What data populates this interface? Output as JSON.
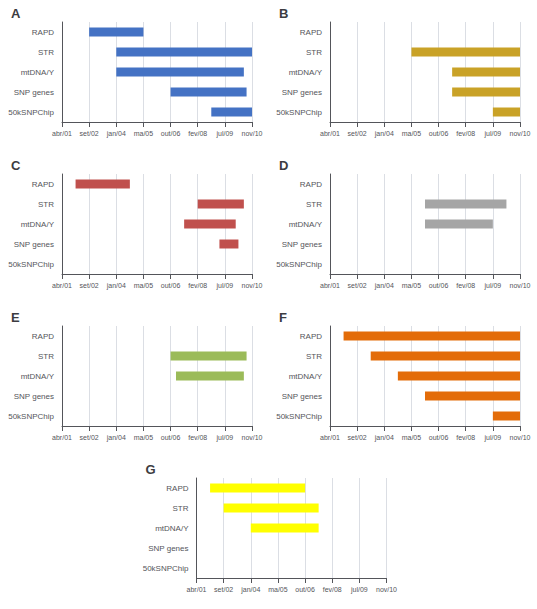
{
  "chart_data": [
    {
      "type": "bar",
      "orientation": "horizontal",
      "title": "A",
      "categories": [
        "RAPD",
        "STR",
        "mtDNA/Y",
        "SNP genes",
        "50kSNPChip"
      ],
      "values": [
        [
          1.0,
          3.0
        ],
        [
          2.0,
          7.0
        ],
        [
          2.0,
          6.7
        ],
        [
          4.0,
          6.8
        ],
        [
          5.5,
          7.0
        ]
      ],
      "color": "#4472C4",
      "xlim": [
        0,
        7
      ],
      "xticks": [
        {
          "value": 0,
          "label": "abr/01"
        },
        {
          "value": 1,
          "label": "set/02"
        },
        {
          "value": 2,
          "label": "jan/04"
        },
        {
          "value": 3,
          "label": "ma/05"
        },
        {
          "value": 4,
          "label": "out/06"
        },
        {
          "value": 5,
          "label": "fev/08"
        },
        {
          "value": 6,
          "label": "jul/09"
        },
        {
          "value": 7,
          "label": "nov/10"
        }
      ],
      "grid": true
    },
    {
      "type": "bar",
      "orientation": "horizontal",
      "title": "B",
      "categories": [
        "RAPD",
        "STR",
        "mtDNA/Y",
        "SNP genes",
        "50kSNPChip"
      ],
      "values": [
        [
          0,
          0
        ],
        [
          3.0,
          7.0
        ],
        [
          4.5,
          7.0
        ],
        [
          4.5,
          7.0
        ],
        [
          6.0,
          7.0
        ]
      ],
      "color": "#C9A227",
      "xlim": [
        0,
        7
      ],
      "xticks": [
        {
          "value": 0,
          "label": "abr/01"
        },
        {
          "value": 1,
          "label": "set/02"
        },
        {
          "value": 2,
          "label": "jan/04"
        },
        {
          "value": 3,
          "label": "ma/05"
        },
        {
          "value": 4,
          "label": "out/06"
        },
        {
          "value": 5,
          "label": "fev/08"
        },
        {
          "value": 6,
          "label": "jul/09"
        },
        {
          "value": 7,
          "label": "nov/10"
        }
      ],
      "grid": true
    },
    {
      "type": "bar",
      "orientation": "horizontal",
      "title": "C",
      "categories": [
        "RAPD",
        "STR",
        "mtDNA/Y",
        "SNP genes",
        "50kSNPChip"
      ],
      "values": [
        [
          0.5,
          2.5
        ],
        [
          5.0,
          6.7
        ],
        [
          4.5,
          6.4
        ],
        [
          5.8,
          6.5
        ],
        [
          0,
          0
        ]
      ],
      "color": "#C0504D",
      "xlim": [
        0,
        7
      ],
      "xticks": [
        {
          "value": 0,
          "label": "abr/01"
        },
        {
          "value": 1,
          "label": "set/02"
        },
        {
          "value": 2,
          "label": "jan/04"
        },
        {
          "value": 3,
          "label": "ma/05"
        },
        {
          "value": 4,
          "label": "out/06"
        },
        {
          "value": 5,
          "label": "fev/08"
        },
        {
          "value": 6,
          "label": "jul/09"
        },
        {
          "value": 7,
          "label": "nov/10"
        }
      ],
      "grid": true
    },
    {
      "type": "bar",
      "orientation": "horizontal",
      "title": "D",
      "categories": [
        "RAPD",
        "STR",
        "mtDNA/Y",
        "SNP genes",
        "50kSNPChip"
      ],
      "values": [
        [
          0,
          0
        ],
        [
          3.5,
          6.5
        ],
        [
          3.5,
          6.0
        ],
        [
          0,
          0
        ],
        [
          0,
          0
        ]
      ],
      "color": "#A5A5A5",
      "xlim": [
        0,
        7
      ],
      "xticks": [
        {
          "value": 0,
          "label": "abr/01"
        },
        {
          "value": 1,
          "label": "set/02"
        },
        {
          "value": 2,
          "label": "jan/04"
        },
        {
          "value": 3,
          "label": "ma/05"
        },
        {
          "value": 4,
          "label": "out/06"
        },
        {
          "value": 5,
          "label": "fev/08"
        },
        {
          "value": 6,
          "label": "jul/09"
        },
        {
          "value": 7,
          "label": "nov/10"
        }
      ],
      "grid": true
    },
    {
      "type": "bar",
      "orientation": "horizontal",
      "title": "E",
      "categories": [
        "RAPD",
        "STR",
        "mtDNA/Y",
        "SNP genes",
        "50kSNPChip"
      ],
      "values": [
        [
          0,
          0
        ],
        [
          4.0,
          6.8
        ],
        [
          4.2,
          6.7
        ],
        [
          0,
          0
        ],
        [
          0,
          0
        ]
      ],
      "color": "#9BBB59",
      "xlim": [
        0,
        7
      ],
      "xticks": [
        {
          "value": 0,
          "label": "abr/01"
        },
        {
          "value": 1,
          "label": "set/02"
        },
        {
          "value": 2,
          "label": "jan/04"
        },
        {
          "value": 3,
          "label": "ma/05"
        },
        {
          "value": 4,
          "label": "out/06"
        },
        {
          "value": 5,
          "label": "fev/08"
        },
        {
          "value": 6,
          "label": "jul/09"
        },
        {
          "value": 7,
          "label": "nov/10"
        }
      ],
      "grid": true
    },
    {
      "type": "bar",
      "orientation": "horizontal",
      "title": "F",
      "categories": [
        "RAPD",
        "STR",
        "mtDNA/Y",
        "SNP genes",
        "50kSNPChip"
      ],
      "values": [
        [
          0.5,
          7.0
        ],
        [
          1.5,
          7.0
        ],
        [
          2.5,
          7.0
        ],
        [
          3.5,
          7.0
        ],
        [
          6.0,
          7.0
        ]
      ],
      "color": "#E36C09",
      "xlim": [
        0,
        7
      ],
      "xticks": [
        {
          "value": 0,
          "label": "abr/01"
        },
        {
          "value": 1,
          "label": "set/02"
        },
        {
          "value": 2,
          "label": "jan/04"
        },
        {
          "value": 3,
          "label": "ma/05"
        },
        {
          "value": 4,
          "label": "out/06"
        },
        {
          "value": 5,
          "label": "fev/08"
        },
        {
          "value": 6,
          "label": "jul/09"
        },
        {
          "value": 7,
          "label": "nov/10"
        }
      ],
      "grid": true
    },
    {
      "type": "bar",
      "orientation": "horizontal",
      "title": "G",
      "categories": [
        "RAPD",
        "STR",
        "mtDNA/Y",
        "SNP genes",
        "50kSNPChip"
      ],
      "values": [
        [
          0.5,
          4.0
        ],
        [
          1.0,
          4.5
        ],
        [
          2.0,
          4.5
        ],
        [
          0,
          0
        ],
        [
          0,
          0
        ]
      ],
      "color": "#FFFF00",
      "xlim": [
        0,
        7
      ],
      "xticks": [
        {
          "value": 0,
          "label": "abr/01"
        },
        {
          "value": 1,
          "label": "set/02"
        },
        {
          "value": 2,
          "label": "jan/04"
        },
        {
          "value": 3,
          "label": "ma/05"
        },
        {
          "value": 4,
          "label": "out/06"
        },
        {
          "value": 5,
          "label": "fev/08"
        },
        {
          "value": 6,
          "label": "jul/09"
        },
        {
          "value": 7,
          "label": "nov/10"
        }
      ],
      "grid": true
    }
  ]
}
